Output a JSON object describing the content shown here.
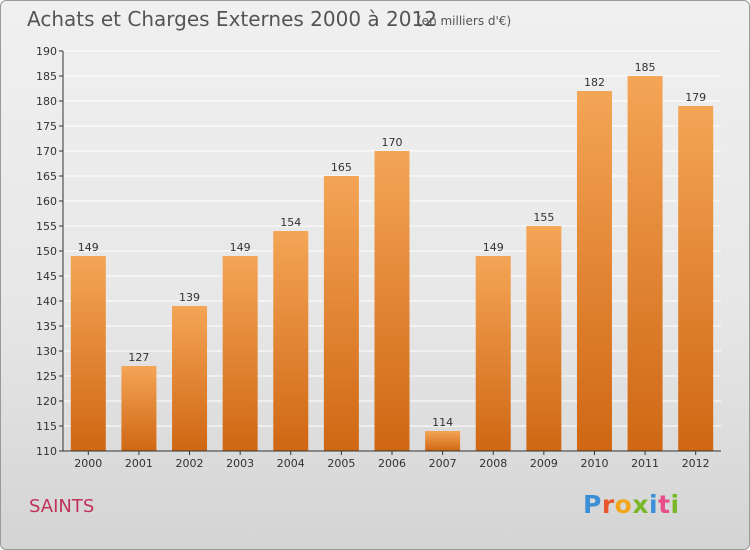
{
  "title": "Achats et Charges Externes 2000 à 2012",
  "subtitle": "(en milliers d'€)",
  "commune": "SAINTS",
  "logo": {
    "text": "Proxiti",
    "letter_colors": [
      "#3a8fd6",
      "#e8562c",
      "#f2a61c",
      "#7ab829",
      "#3a8fd6",
      "#e84e8a",
      "#7ab829"
    ]
  },
  "colors": {
    "bar_top": "#f4a556",
    "bar_bottom": "#cf6714",
    "axis": "#333333",
    "grid": "#ffffff",
    "title_text": "#555555",
    "commune_text": "#c0315a"
  },
  "chart_data": {
    "type": "bar",
    "title": "Achats et Charges Externes 2000 à 2012",
    "subtitle": "(en milliers d'€)",
    "categories": [
      "2000",
      "2001",
      "2002",
      "2003",
      "2004",
      "2005",
      "2006",
      "2007",
      "2008",
      "2009",
      "2010",
      "2011",
      "2012"
    ],
    "values": [
      149,
      127,
      139,
      149,
      154,
      165,
      170,
      114,
      149,
      155,
      182,
      185,
      179
    ],
    "ylim": [
      110,
      190
    ],
    "yticks": [
      110,
      115,
      120,
      125,
      130,
      135,
      140,
      145,
      150,
      155,
      160,
      165,
      170,
      175,
      180,
      185,
      190
    ],
    "grid": true,
    "data_labels": true
  }
}
